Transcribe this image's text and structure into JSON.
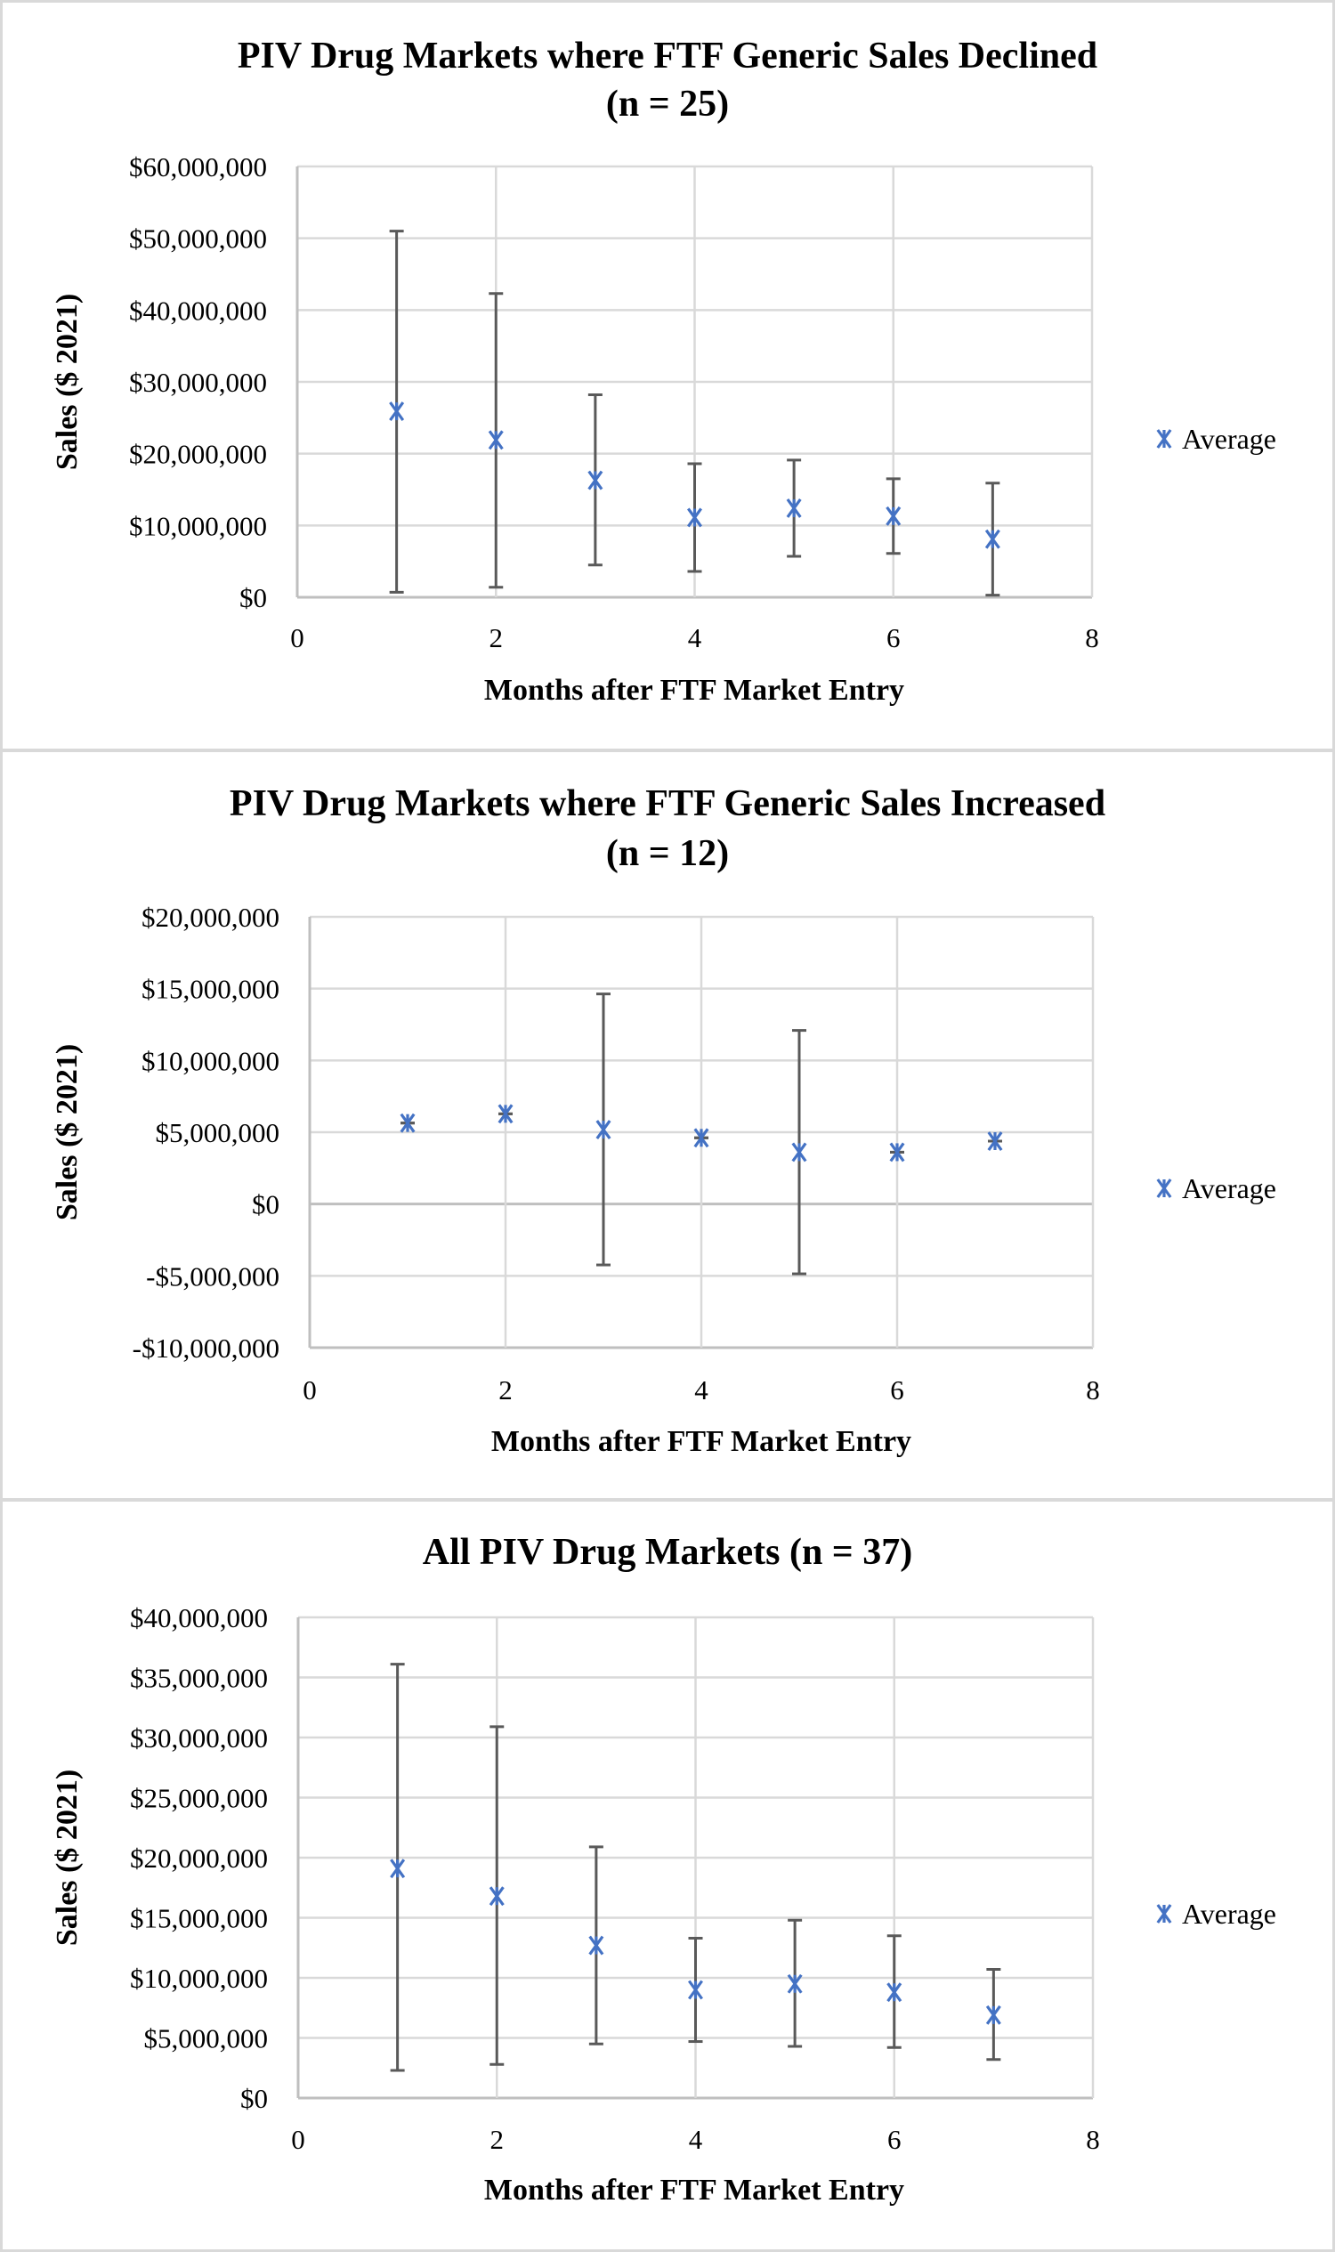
{
  "colors": {
    "marker": "#4472c4",
    "error_bar": "#595959",
    "gridline": "#d9d9d9",
    "axis_line": "#bfbfbf",
    "separator": "#d9d9d9"
  },
  "chart_data": [
    {
      "type": "scatter",
      "title": "PIV Drug Markets where FTF Generic Sales Declined",
      "subtitle": "(n = 25)",
      "xlabel": "Months after FTF Market Entry",
      "ylabel": "Sales ($ 2021)",
      "xlim": [
        0,
        8
      ],
      "ylim": [
        0,
        60000000
      ],
      "x_ticks": [
        0,
        2,
        4,
        6,
        8
      ],
      "y_ticks": [
        0,
        10000000,
        20000000,
        30000000,
        40000000,
        50000000,
        60000000
      ],
      "y_tick_labels": [
        "$0",
        "$10,000,000",
        "$20,000,000",
        "$30,000,000",
        "$40,000,000",
        "$50,000,000",
        "$60,000,000"
      ],
      "grid": true,
      "legend": {
        "entries": [
          "Average"
        ],
        "placement": "right"
      },
      "series": [
        {
          "name": "Average",
          "marker": "asterisk",
          "x": [
            1,
            2,
            3,
            4,
            5,
            6,
            7
          ],
          "y": [
            25900000,
            21900000,
            16300000,
            11100000,
            12400000,
            11300000,
            8100000
          ],
          "error_upper": [
            51000000,
            42300000,
            28200000,
            18600000,
            19100000,
            16500000,
            15900000
          ],
          "error_lower": [
            700000,
            1400000,
            4500000,
            3600000,
            5700000,
            6100000,
            300000
          ]
        }
      ]
    },
    {
      "type": "scatter",
      "title": "PIV Drug Markets where FTF Generic Sales Increased",
      "subtitle": "(n = 12)",
      "xlabel": "Months after FTF Market Entry",
      "ylabel": "Sales ($ 2021)",
      "xlim": [
        0,
        8
      ],
      "ylim": [
        -10000000,
        20000000
      ],
      "x_ticks": [
        0,
        2,
        4,
        6,
        8
      ],
      "y_ticks": [
        -10000000,
        -5000000,
        0,
        5000000,
        10000000,
        15000000,
        20000000
      ],
      "y_tick_labels": [
        "-$10,000,000",
        "-$5,000,000",
        "$0",
        "$5,000,000",
        "$10,000,000",
        "$15,000,000",
        "$20,000,000"
      ],
      "grid": true,
      "legend": {
        "entries": [
          "Average"
        ],
        "placement": "right"
      },
      "series": [
        {
          "name": "Average",
          "marker": "asterisk",
          "x": [
            1,
            2,
            3,
            4,
            5,
            6,
            7
          ],
          "y": [
            5640000,
            6280000,
            5180000,
            4610000,
            3610000,
            3610000,
            4380000
          ],
          "error_upper": [
            5640000,
            6280000,
            14630000,
            4610000,
            12090000,
            3610000,
            4380000
          ],
          "error_lower": [
            5640000,
            6280000,
            -4240000,
            4610000,
            -4860000,
            3610000,
            4380000
          ]
        }
      ]
    },
    {
      "type": "scatter",
      "title": "All PIV Drug Markets (n = 37)",
      "subtitle": "",
      "xlabel": "Months after FTF Market Entry",
      "ylabel": "Sales ($ 2021)",
      "xlim": [
        0,
        8
      ],
      "ylim": [
        0,
        40000000
      ],
      "x_ticks": [
        0,
        2,
        4,
        6,
        8
      ],
      "y_ticks": [
        0,
        5000000,
        10000000,
        15000000,
        20000000,
        25000000,
        30000000,
        35000000,
        40000000
      ],
      "y_tick_labels": [
        "$0",
        "$5,000,000",
        "$10,000,000",
        "$15,000,000",
        "$20,000,000",
        "$25,000,000",
        "$30,000,000",
        "$35,000,000",
        "$40,000,000"
      ],
      "grid": true,
      "legend": {
        "entries": [
          "Average"
        ],
        "placement": "right"
      },
      "series": [
        {
          "name": "Average",
          "marker": "asterisk",
          "x": [
            1,
            2,
            3,
            4,
            5,
            6,
            7
          ],
          "y": [
            19100000,
            16800000,
            12700000,
            9000000,
            9500000,
            8800000,
            6900000
          ],
          "error_upper": [
            36100000,
            30900000,
            20900000,
            13300000,
            14800000,
            13500000,
            10700000
          ],
          "error_lower": [
            2300000,
            2800000,
            4500000,
            4700000,
            4300000,
            4200000,
            3200000
          ]
        }
      ]
    }
  ]
}
